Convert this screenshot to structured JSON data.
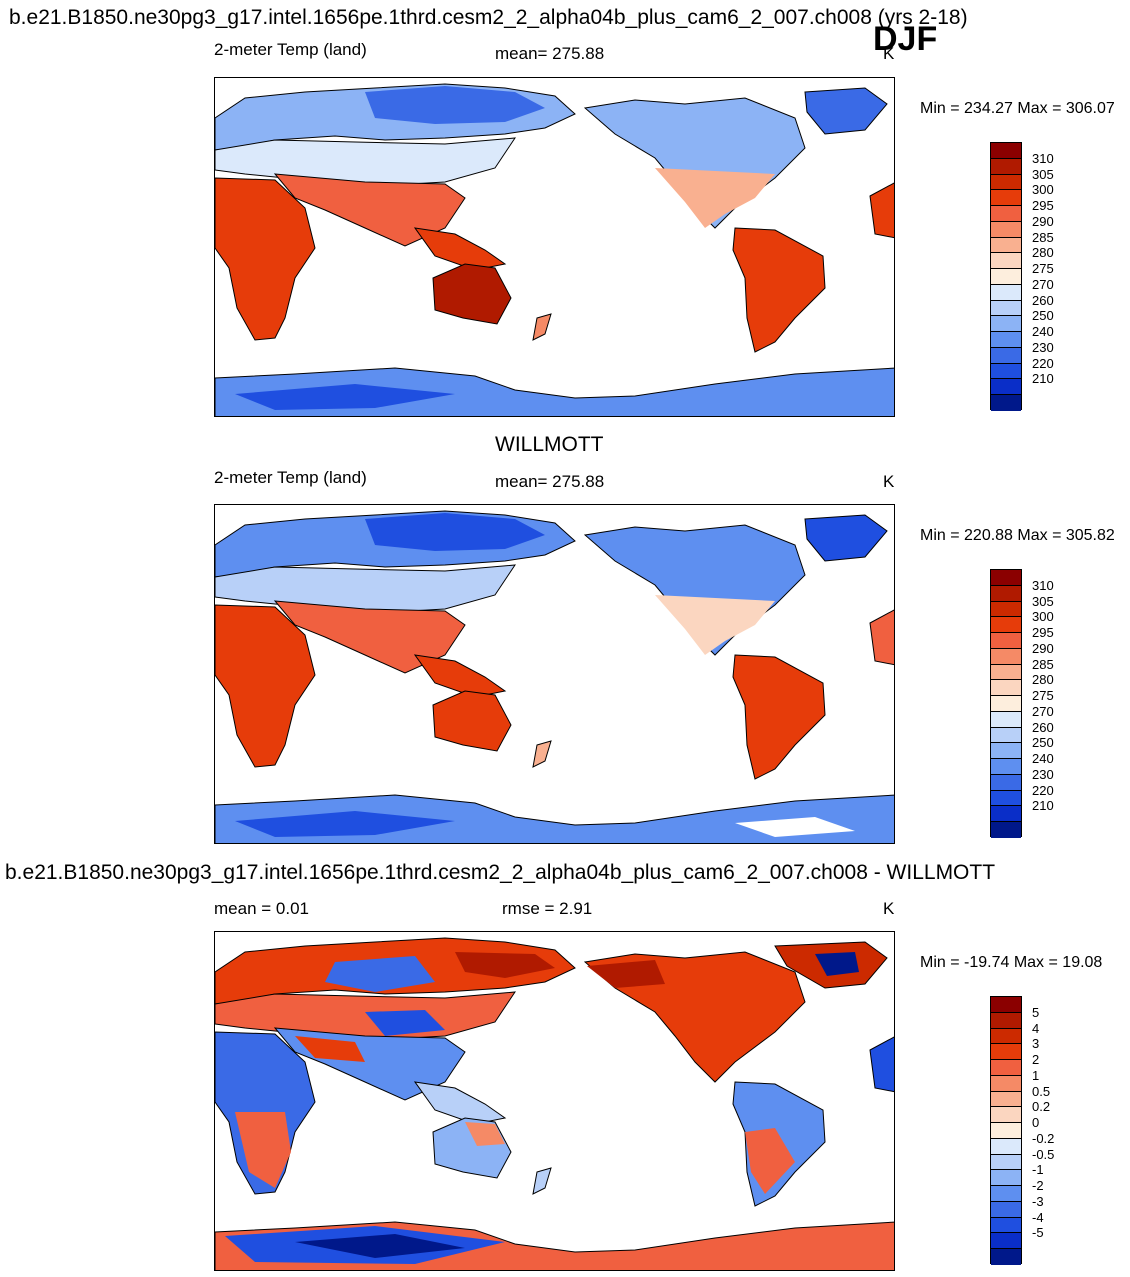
{
  "header": {
    "title": "b.e21.B1850.ne30pg3_g17.intel.1656pe.1thrd.cesm2_2_alpha04b_plus_cam6_2_007.ch008 (yrs 2-18)",
    "season": "DJF"
  },
  "panel1": {
    "variable": "2-meter Temp (land)",
    "mean": "mean= 275.88",
    "units": "K",
    "minmax": "Min = 234.27 Max = 306.07"
  },
  "panel2": {
    "title": "WILLMOTT",
    "variable": "2-meter Temp (land)",
    "mean": "mean= 275.88",
    "units": "K",
    "minmax": "Min = 220.88 Max = 305.82"
  },
  "panel3": {
    "title": "b.e21.B1850.ne30pg3_g17.intel.1656pe.1thrd.cesm2_2_alpha04b_plus_cam6_2_007.ch008 - WILLMOTT",
    "mean": "mean =   0.01",
    "rmse": "rmse =   2.91",
    "units": "K",
    "minmax": "Min = -19.74 Max =  19.08"
  },
  "colorbar_temp": {
    "labels": [
      "310",
      "305",
      "300",
      "295",
      "290",
      "285",
      "280",
      "275",
      "270",
      "260",
      "250",
      "240",
      "230",
      "220",
      "210"
    ],
    "colors": [
      "#8b0000",
      "#b01a00",
      "#cc2a00",
      "#e63c0a",
      "#f06040",
      "#f58a66",
      "#f9b090",
      "#fbd6c0",
      "#fdeedd",
      "#dbe9fb",
      "#b8d0f8",
      "#8cb3f5",
      "#5e8ff0",
      "#3a6ae6",
      "#1f4fe0",
      "#0a2ec8",
      "#00188a"
    ]
  },
  "colorbar_diff": {
    "labels": [
      "5",
      "4",
      "3",
      "2",
      "1",
      "0.5",
      "0.2",
      "0",
      "-0.2",
      "-0.5",
      "-1",
      "-2",
      "-3",
      "-4",
      "-5"
    ],
    "colors": [
      "#8b0000",
      "#b01a00",
      "#cc2a00",
      "#e63c0a",
      "#f06040",
      "#f58a66",
      "#f9b090",
      "#fbd6c0",
      "#fdeedd",
      "#dbe9fb",
      "#b8d0f8",
      "#8cb3f5",
      "#5e8ff0",
      "#3a6ae6",
      "#1f4fe0",
      "#0a2ec8",
      "#00188a"
    ]
  }
}
